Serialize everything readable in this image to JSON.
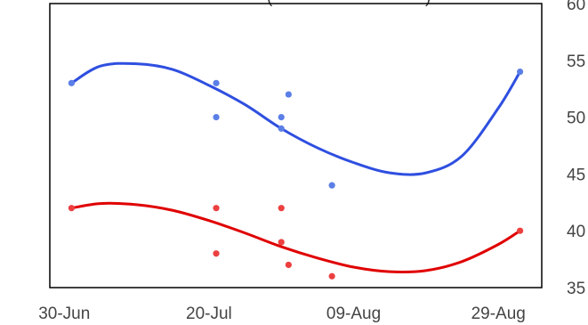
{
  "chart_data": {
    "type": "scatter",
    "title": "",
    "title_visible_fragment": "(",
    "title_visible_fragment_2": ")",
    "xlabel": "",
    "ylabel": "",
    "x_axis": {
      "type": "date",
      "range": [
        "2023-06-28",
        "2023-09-04"
      ],
      "ticks": [
        {
          "value": "2023-06-30",
          "label": "30-Jun"
        },
        {
          "value": "2023-07-20",
          "label": "20-Jul"
        },
        {
          "value": "2023-08-09",
          "label": "09-Aug"
        },
        {
          "value": "2023-08-29",
          "label": "29-Aug"
        }
      ]
    },
    "y_axis": {
      "side": "right",
      "range": [
        35,
        60
      ],
      "ticks": [
        35,
        40,
        45,
        50,
        55,
        60
      ]
    },
    "grid": false,
    "legend": "none",
    "series": [
      {
        "color": "#2f4fe0",
        "point_color": "#5b7fe6",
        "points": [
          {
            "x": "2023-07-01",
            "y": 53
          },
          {
            "x": "2023-07-21",
            "y": 53
          },
          {
            "x": "2023-07-21",
            "y": 50
          },
          {
            "x": "2023-07-30",
            "y": 50
          },
          {
            "x": "2023-07-30",
            "y": 49
          },
          {
            "x": "2023-07-31",
            "y": 52
          },
          {
            "x": "2023-08-06",
            "y": 44
          },
          {
            "x": "2023-09-01",
            "y": 54
          }
        ],
        "trend": [
          {
            "x": "2023-07-01",
            "y": 53.0
          },
          {
            "x": "2023-07-05",
            "y": 54.5
          },
          {
            "x": "2023-07-10",
            "y": 54.7
          },
          {
            "x": "2023-07-15",
            "y": 54.2
          },
          {
            "x": "2023-07-20",
            "y": 52.8
          },
          {
            "x": "2023-07-25",
            "y": 51.1
          },
          {
            "x": "2023-07-30",
            "y": 49.0
          },
          {
            "x": "2023-08-04",
            "y": 47.3
          },
          {
            "x": "2023-08-09",
            "y": 46.0
          },
          {
            "x": "2023-08-14",
            "y": 45.1
          },
          {
            "x": "2023-08-19",
            "y": 45.1
          },
          {
            "x": "2023-08-24",
            "y": 46.6
          },
          {
            "x": "2023-08-29",
            "y": 50.8
          },
          {
            "x": "2023-09-01",
            "y": 54.0
          }
        ]
      },
      {
        "color": "#e00000",
        "point_color": "#ec4040",
        "points": [
          {
            "x": "2023-07-01",
            "y": 42
          },
          {
            "x": "2023-07-21",
            "y": 42
          },
          {
            "x": "2023-07-21",
            "y": 38
          },
          {
            "x": "2023-07-30",
            "y": 42
          },
          {
            "x": "2023-07-30",
            "y": 39
          },
          {
            "x": "2023-07-31",
            "y": 37
          },
          {
            "x": "2023-08-06",
            "y": 36
          },
          {
            "x": "2023-09-01",
            "y": 40
          }
        ],
        "trend": [
          {
            "x": "2023-07-01",
            "y": 42.0
          },
          {
            "x": "2023-07-05",
            "y": 42.4
          },
          {
            "x": "2023-07-10",
            "y": 42.3
          },
          {
            "x": "2023-07-15",
            "y": 41.8
          },
          {
            "x": "2023-07-20",
            "y": 40.9
          },
          {
            "x": "2023-07-25",
            "y": 39.8
          },
          {
            "x": "2023-07-30",
            "y": 38.6
          },
          {
            "x": "2023-08-04",
            "y": 37.6
          },
          {
            "x": "2023-08-09",
            "y": 36.8
          },
          {
            "x": "2023-08-14",
            "y": 36.4
          },
          {
            "x": "2023-08-19",
            "y": 36.5
          },
          {
            "x": "2023-08-24",
            "y": 37.3
          },
          {
            "x": "2023-08-29",
            "y": 38.8
          },
          {
            "x": "2023-09-01",
            "y": 40.0
          }
        ]
      }
    ]
  }
}
